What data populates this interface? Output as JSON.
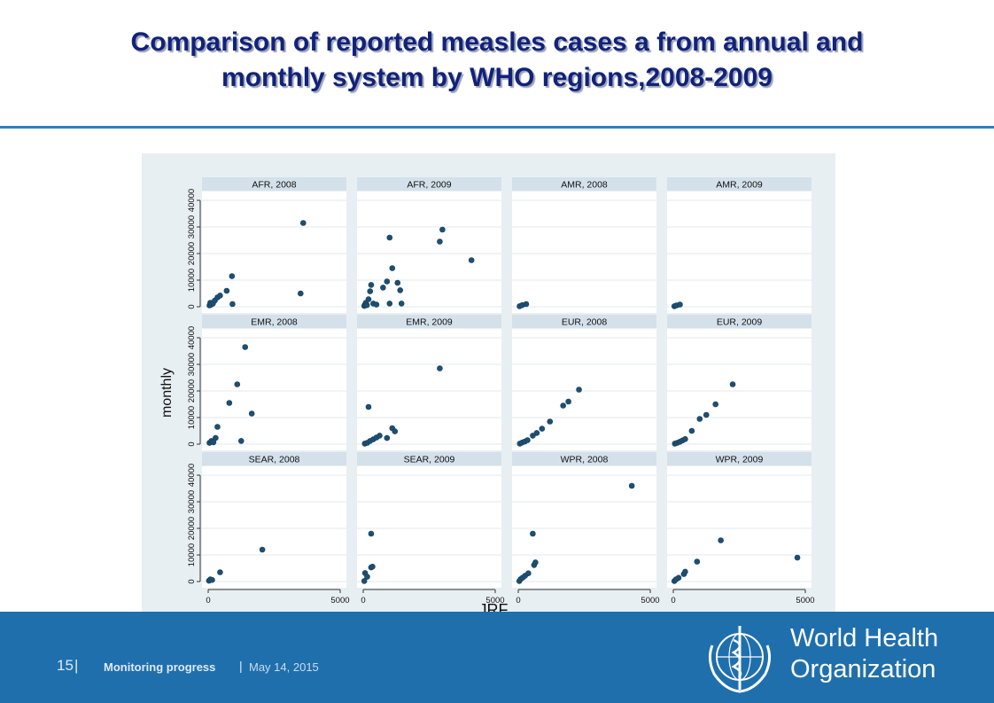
{
  "slide": {
    "title_line1": "Comparison of reported measles cases a from annual and",
    "title_line2": "monthly system by WHO regions,2008-2009"
  },
  "footer": {
    "page_number": "15",
    "separator": "|",
    "section": "Monitoring progress",
    "date": "May 14, 2015",
    "org_line1": "World Health",
    "org_line2": "Organization",
    "logo_icon": "who-emblem-icon"
  },
  "colors": {
    "title": "#12227a",
    "rule": "#2e7fbf",
    "footer_bg": "#1f6fad",
    "chart_bg": "#e8eff3",
    "strip_bg": "#d4e1ea",
    "point": "#1d4f72"
  },
  "chart_data": {
    "type": "scatter",
    "xlabel": "JRF",
    "ylabel": "monthly",
    "xlim": [
      0,
      5000
    ],
    "ylim": [
      0,
      40000
    ],
    "xticks": [
      0,
      5000
    ],
    "yticks": [
      0,
      10000,
      20000,
      30000,
      40000
    ],
    "ytick_labels": [
      "0",
      "10000",
      "20000",
      "30000",
      "40000"
    ],
    "grid": true,
    "panels": [
      {
        "label": "AFR, 2008",
        "points": [
          [
            50,
            500
          ],
          [
            80,
            1500
          ],
          [
            120,
            800
          ],
          [
            180,
            1200
          ],
          [
            250,
            2300
          ],
          [
            350,
            3500
          ],
          [
            450,
            4200
          ],
          [
            700,
            6000
          ],
          [
            900,
            11500
          ],
          [
            920,
            1000
          ],
          [
            3500,
            5000
          ],
          [
            3600,
            31500
          ]
        ]
      },
      {
        "label": "AFR, 2009",
        "points": [
          [
            40,
            300
          ],
          [
            70,
            900
          ],
          [
            100,
            1500
          ],
          [
            140,
            600
          ],
          [
            200,
            2800
          ],
          [
            260,
            5800
          ],
          [
            300,
            8200
          ],
          [
            380,
            1200
          ],
          [
            500,
            800
          ],
          [
            750,
            7200
          ],
          [
            900,
            9500
          ],
          [
            1000,
            1200
          ],
          [
            1100,
            14500
          ],
          [
            1300,
            9000
          ],
          [
            1400,
            6200
          ],
          [
            1450,
            1200
          ],
          [
            1000,
            26000
          ],
          [
            2900,
            24500
          ],
          [
            3000,
            29000
          ],
          [
            4100,
            17500
          ]
        ]
      },
      {
        "label": "AMR, 2008",
        "points": [
          [
            50,
            200
          ],
          [
            150,
            600
          ],
          [
            300,
            1000
          ]
        ]
      },
      {
        "label": "AMR, 2009",
        "points": [
          [
            40,
            200
          ],
          [
            120,
            500
          ],
          [
            250,
            800
          ]
        ]
      },
      {
        "label": "EMR, 2008",
        "points": [
          [
            50,
            500
          ],
          [
            120,
            1200
          ],
          [
            200,
            700
          ],
          [
            280,
            2300
          ],
          [
            350,
            6500
          ],
          [
            800,
            15500
          ],
          [
            1100,
            22500
          ],
          [
            1250,
            1200
          ],
          [
            1400,
            36500
          ],
          [
            1650,
            11500
          ]
        ]
      },
      {
        "label": "EMR, 2009",
        "points": [
          [
            60,
            200
          ],
          [
            150,
            500
          ],
          [
            260,
            1200
          ],
          [
            380,
            1800
          ],
          [
            500,
            2500
          ],
          [
            620,
            3200
          ],
          [
            200,
            14000
          ],
          [
            900,
            2300
          ],
          [
            1100,
            6000
          ],
          [
            1200,
            4800
          ],
          [
            2900,
            28500
          ]
        ]
      },
      {
        "label": "EUR, 2008",
        "points": [
          [
            60,
            200
          ],
          [
            150,
            600
          ],
          [
            250,
            1000
          ],
          [
            350,
            1500
          ],
          [
            550,
            3200
          ],
          [
            700,
            4200
          ],
          [
            900,
            5800
          ],
          [
            1200,
            8500
          ],
          [
            1700,
            14500
          ],
          [
            1900,
            16000
          ],
          [
            2300,
            20500
          ]
        ]
      },
      {
        "label": "EUR, 2009",
        "points": [
          [
            60,
            200
          ],
          [
            150,
            500
          ],
          [
            250,
            900
          ],
          [
            350,
            1400
          ],
          [
            450,
            1900
          ],
          [
            700,
            5000
          ],
          [
            1000,
            9500
          ],
          [
            1250,
            11000
          ],
          [
            1600,
            15000
          ],
          [
            2250,
            22500
          ]
        ]
      },
      {
        "label": "SEAR, 2008",
        "points": [
          [
            30,
            300
          ],
          [
            80,
            800
          ],
          [
            150,
            600
          ],
          [
            450,
            3500
          ],
          [
            2050,
            12000
          ]
        ]
      },
      {
        "label": "SEAR, 2009",
        "points": [
          [
            40,
            200
          ],
          [
            70,
            3200
          ],
          [
            150,
            1800
          ],
          [
            300,
            5300
          ],
          [
            350,
            5600
          ],
          [
            300,
            18000
          ]
        ]
      },
      {
        "label": "WPR, 2008",
        "points": [
          [
            40,
            200
          ],
          [
            90,
            900
          ],
          [
            170,
            1500
          ],
          [
            260,
            2200
          ],
          [
            380,
            3100
          ],
          [
            600,
            6200
          ],
          [
            650,
            7200
          ],
          [
            550,
            18000
          ],
          [
            4300,
            36000
          ]
        ]
      },
      {
        "label": "WPR, 2009",
        "points": [
          [
            40,
            200
          ],
          [
            100,
            800
          ],
          [
            200,
            1400
          ],
          [
            400,
            2800
          ],
          [
            450,
            3700
          ],
          [
            900,
            7500
          ],
          [
            1800,
            15500
          ],
          [
            4700,
            9000
          ]
        ]
      }
    ]
  }
}
